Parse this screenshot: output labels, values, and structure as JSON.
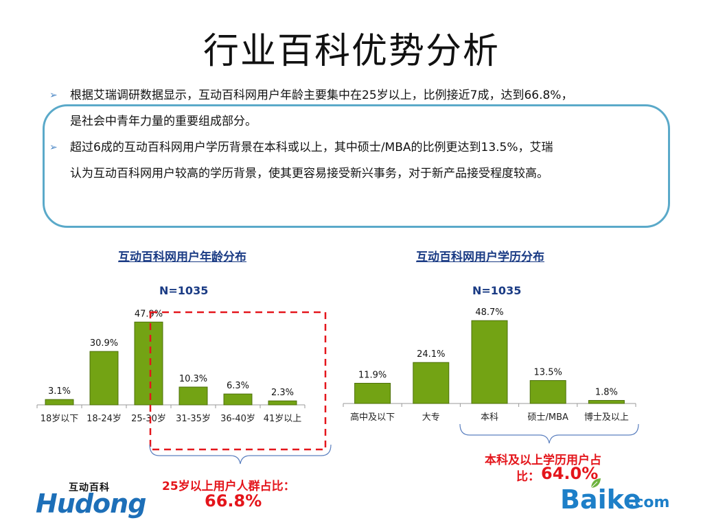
{
  "title": "行业百科优势分析",
  "bullets": [
    {
      "line1": "根据艾瑞调研数据显示，互动百科网用户年龄主要集中在25岁以上，比例接近7成，达到66.8%，",
      "line2": "是社会中青年力量的重要组成部分。"
    },
    {
      "line1": "超过6成的互动百科网用户学历背景在本科或以上，其中硕士/MBA的比例更达到13.5%，艾瑞",
      "line2": "认为互动百科网用户较高的学历背景，使其更容易接受新兴事务，对于新产品接受程度较高。"
    }
  ],
  "colors": {
    "bar": "#73a314",
    "bar_stroke": "#4c6f0a",
    "accent_red": "#e4151b",
    "title_blue": "#1a3b84",
    "box_border": "#5aa9c9",
    "brace_blue": "#5a7fbf"
  },
  "callouts": {
    "age_line1": "25岁以上用户人群占比：",
    "age_value": "66.8%",
    "edu_line1": "本科及以上学历用户占",
    "edu_prefix": "比：",
    "edu_value": "64.0%"
  },
  "logos": {
    "hudong_small": "互动百科",
    "hudong_big": "Hudong",
    "baike": "Baike",
    "baike_com": ".com"
  },
  "chart_data": [
    {
      "type": "bar",
      "title": "互动百科网用户年龄分布",
      "n_label": "N=1035",
      "categories": [
        "18岁以下",
        "18-24岁",
        "25-30岁",
        "31-35岁",
        "36-40岁",
        "41岁以上"
      ],
      "values": [
        3.1,
        30.9,
        47.9,
        10.3,
        6.3,
        2.3
      ],
      "value_labels": [
        "3.1%",
        "30.9%",
        "47.9%",
        "10.3%",
        "6.3%",
        "2.3%"
      ],
      "ylim": [
        0,
        50
      ],
      "grid": false,
      "highlight_range": [
        2,
        5
      ]
    },
    {
      "type": "bar",
      "title": "互动百科网用户学历分布",
      "n_label": "N=1035",
      "categories": [
        "高中及以下",
        "大专",
        "本科",
        "硕士/MBA",
        "博士及以上"
      ],
      "values": [
        11.9,
        24.1,
        48.7,
        13.5,
        1.8
      ],
      "value_labels": [
        "11.9%",
        "24.1%",
        "48.7%",
        "13.5%",
        "1.8%"
      ],
      "ylim": [
        0,
        50
      ],
      "grid": false,
      "highlight_range": [
        2,
        4
      ]
    }
  ]
}
